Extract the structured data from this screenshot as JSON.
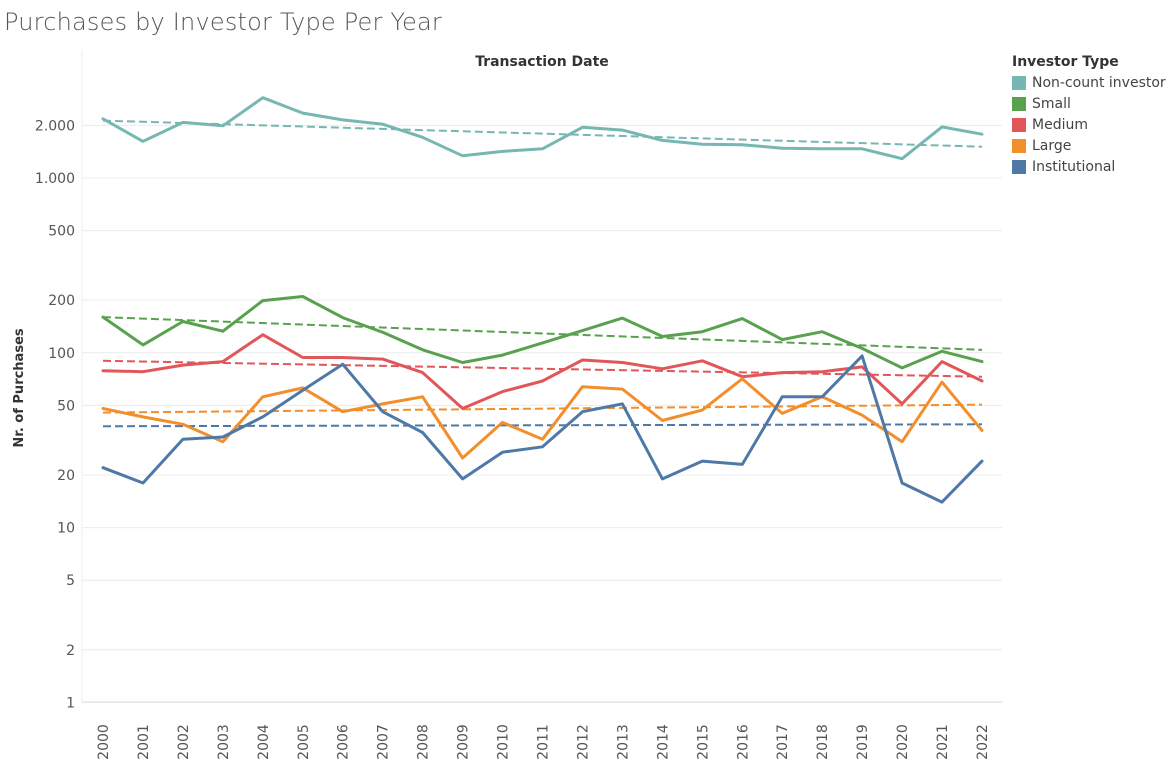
{
  "title": "Purchases by Investor Type Per Year",
  "legend": {
    "title": "Investor Type",
    "items": [
      {
        "label": "Non-count investor",
        "color": "#76b7b2"
      },
      {
        "label": "Small",
        "color": "#59a14f"
      },
      {
        "label": "Medium",
        "color": "#e15759"
      },
      {
        "label": "Large",
        "color": "#f28e2b"
      },
      {
        "label": "Institutional",
        "color": "#4e79a7"
      }
    ]
  },
  "chart_data": {
    "type": "line",
    "title": "Purchases by Investor Type Per Year",
    "subtitle": "Transaction Date",
    "xlabel": "",
    "ylabel": "Nr. of Purchases",
    "y_scale": "log",
    "ylim": [
      1,
      4000
    ],
    "y_ticks": [
      1,
      2,
      5,
      10,
      20,
      50,
      100,
      200,
      500,
      1000,
      2000
    ],
    "y_tick_labels": [
      "1",
      "2",
      "5",
      "10",
      "20",
      "50",
      "100",
      "200",
      "500",
      "1.000",
      "2.000"
    ],
    "trend_lines": "dashed linear trend per series",
    "grid": "horizontal",
    "legend_position": "right",
    "x": [
      "2000",
      "2001",
      "2002",
      "2003",
      "2004",
      "2005",
      "2006",
      "2007",
      "2008",
      "2009",
      "2010",
      "2011",
      "2012",
      "2013",
      "2014",
      "2015",
      "2016",
      "2017",
      "2018",
      "2019",
      "2020",
      "2021",
      "2022"
    ],
    "series": [
      {
        "name": "Non-count investor",
        "color": "#76b7b2",
        "values": [
          2180,
          1620,
          2080,
          1990,
          2880,
          2350,
          2150,
          2030,
          1710,
          1340,
          1420,
          1470,
          1950,
          1880,
          1640,
          1560,
          1550,
          1480,
          1470,
          1470,
          1290,
          1960,
          1780
        ],
        "trend": [
          2130,
          1510
        ]
      },
      {
        "name": "Small",
        "color": "#59a14f",
        "values": [
          160,
          111,
          151,
          133,
          199,
          210,
          159,
          131,
          104,
          88,
          97,
          114,
          134,
          158,
          124,
          132,
          157,
          119,
          132,
          106,
          82,
          102,
          89
        ],
        "trend": [
          160,
          104
        ]
      },
      {
        "name": "Medium",
        "color": "#e15759",
        "values": [
          79,
          78,
          85,
          89,
          127,
          94,
          94,
          92,
          77,
          48,
          60,
          69,
          91,
          88,
          81,
          90,
          73,
          77,
          78,
          83,
          51,
          89,
          69
        ],
        "trend": [
          90,
          73
        ]
      },
      {
        "name": "Large",
        "color": "#f28e2b",
        "values": [
          48,
          43,
          39,
          31,
          56,
          63,
          46,
          51,
          56,
          25,
          40,
          32,
          64,
          62,
          41,
          47,
          71,
          45,
          56,
          44,
          31,
          68,
          36
        ],
        "trend": [
          45.5,
          50.5
        ]
      },
      {
        "name": "Institutional",
        "color": "#4e79a7",
        "values": [
          22,
          18,
          32,
          33,
          43,
          61,
          86,
          46,
          35,
          19,
          27,
          29,
          46,
          51,
          19,
          24,
          23,
          56,
          56,
          96,
          18,
          14,
          24
        ],
        "trend": [
          38,
          39
        ]
      }
    ]
  }
}
